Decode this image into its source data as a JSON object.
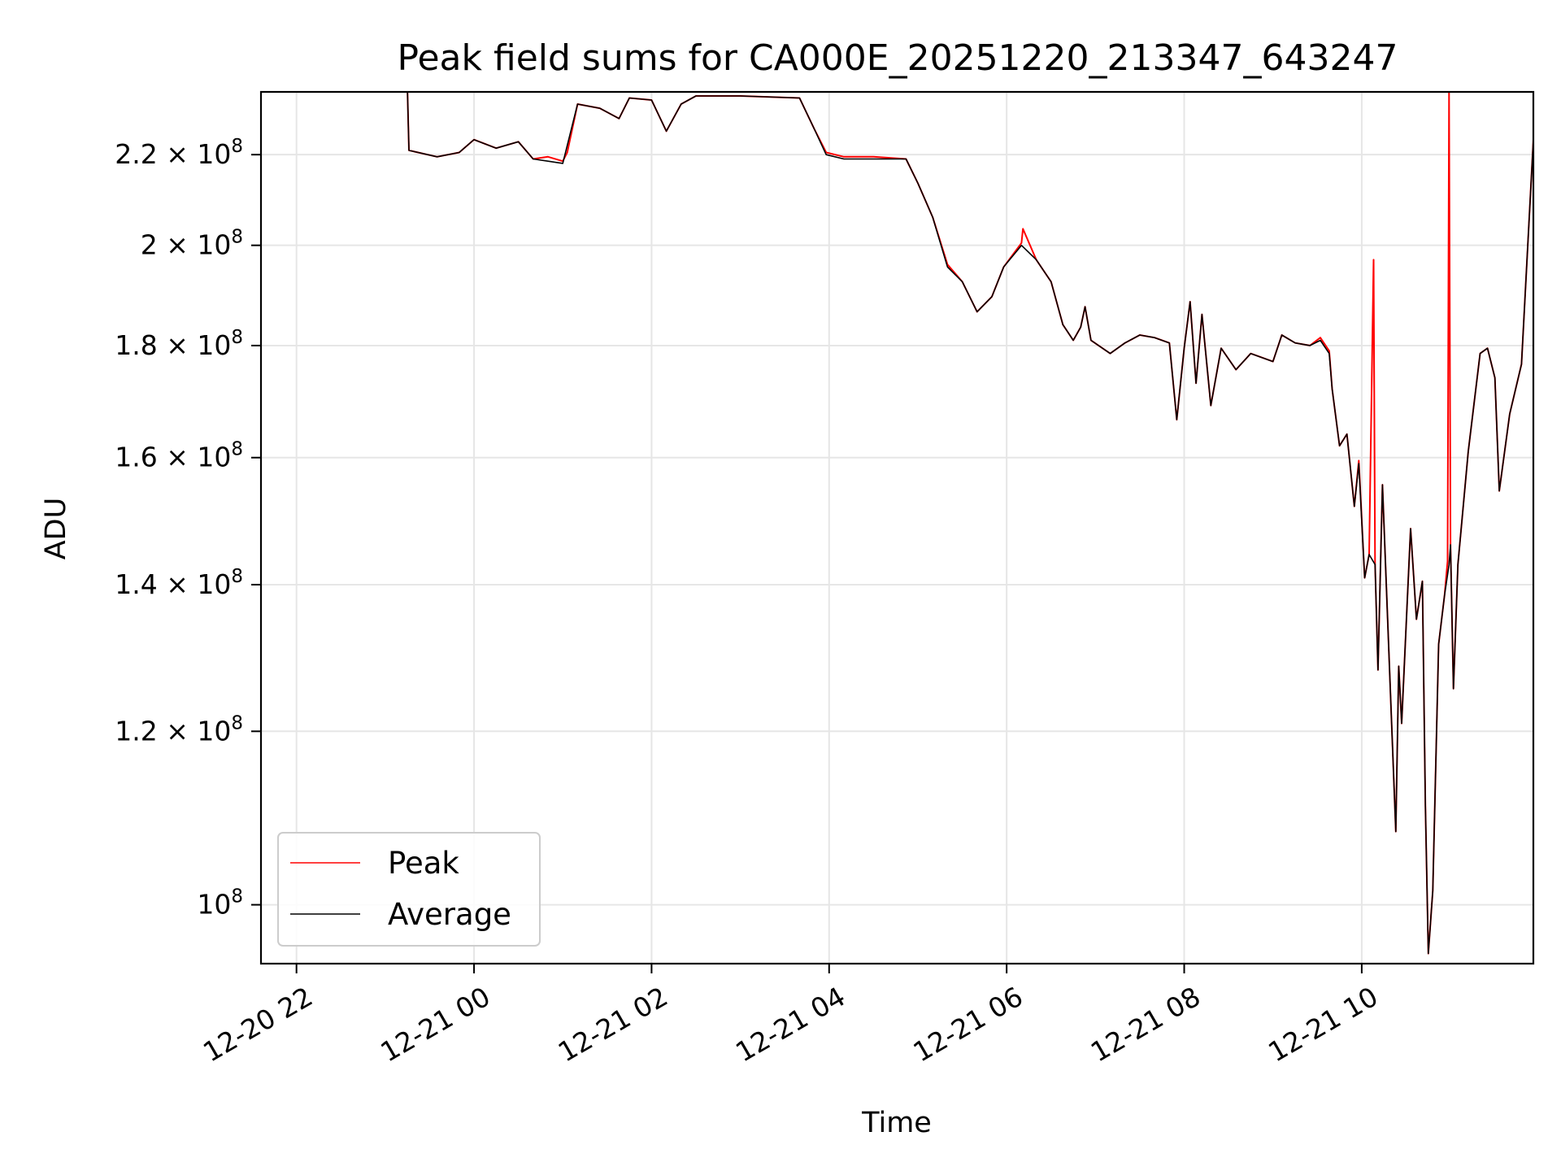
{
  "chart_data": {
    "type": "line",
    "title": "Peak field sums for CA000E_20251220_213347_643247",
    "xlabel": "Time",
    "ylabel": "ADU",
    "y_scale": "log",
    "grid": true,
    "legend_position": "lower-left",
    "x_range": [
      "2025-12-20 21:36",
      "2025-12-21 11:56"
    ],
    "ylim": [
      94000000,
      235000000
    ],
    "x_ticks": [
      "12-20 22",
      "12-21 00",
      "12-21 02",
      "12-21 04",
      "12-21 06",
      "12-21 08",
      "12-21 10"
    ],
    "y_ticks": [
      {
        "value": 100000000,
        "mantissa": "",
        "exponent": "8"
      },
      {
        "value": 120000000,
        "mantissa": "1.2",
        "exponent": "8"
      },
      {
        "value": 140000000,
        "mantissa": "1.4",
        "exponent": "8"
      },
      {
        "value": 160000000,
        "mantissa": "1.6",
        "exponent": "8"
      },
      {
        "value": 180000000,
        "mantissa": "1.8",
        "exponent": "8"
      },
      {
        "value": 200000000,
        "mantissa": "2",
        "exponent": "8"
      },
      {
        "value": 220000000,
        "mantissa": "2.2",
        "exponent": "8"
      }
    ],
    "series": [
      {
        "name": "Peak",
        "color": "#ff0000",
        "points": [
          [
            "2025-12-20 21:36",
            235000000
          ],
          [
            "2025-12-20 23:15",
            235000000
          ],
          [
            "2025-12-20 23:16",
            221000000
          ],
          [
            "2025-12-20 23:35",
            219500000
          ],
          [
            "2025-12-20 23:50",
            220500000
          ],
          [
            "2025-12-21 00:00",
            223500000
          ],
          [
            "2025-12-21 00:15",
            221500000
          ],
          [
            "2025-12-21 00:30",
            223000000
          ],
          [
            "2025-12-21 00:40",
            219000000
          ],
          [
            "2025-12-21 00:50",
            219500000
          ],
          [
            "2025-12-21 01:00",
            218500000
          ],
          [
            "2025-12-21 01:03",
            220500000
          ],
          [
            "2025-12-21 01:10",
            232000000
          ],
          [
            "2025-12-21 01:25",
            231000000
          ],
          [
            "2025-12-21 01:38",
            228500000
          ],
          [
            "2025-12-21 01:45",
            233500000
          ],
          [
            "2025-12-21 02:00",
            233000000
          ],
          [
            "2025-12-21 02:10",
            225500000
          ],
          [
            "2025-12-21 02:20",
            232000000
          ],
          [
            "2025-12-21 02:30",
            234000000
          ],
          [
            "2025-12-21 03:00",
            234000000
          ],
          [
            "2025-12-21 03:40",
            233500000
          ],
          [
            "2025-12-21 03:50",
            226000000
          ],
          [
            "2025-12-21 03:58",
            220500000
          ],
          [
            "2025-12-21 04:10",
            219500000
          ],
          [
            "2025-12-21 04:30",
            219500000
          ],
          [
            "2025-12-21 04:52",
            219000000
          ],
          [
            "2025-12-21 05:00",
            213500000
          ],
          [
            "2025-12-21 05:10",
            206000000
          ],
          [
            "2025-12-21 05:18",
            198000000
          ],
          [
            "2025-12-21 05:20",
            196000000
          ],
          [
            "2025-12-21 05:30",
            192500000
          ],
          [
            "2025-12-21 05:40",
            186500000
          ],
          [
            "2025-12-21 05:50",
            189500000
          ],
          [
            "2025-12-21 05:58",
            195500000
          ],
          [
            "2025-12-21 06:10",
            200500000
          ],
          [
            "2025-12-21 06:11",
            203500000
          ],
          [
            "2025-12-21 06:20",
            197000000
          ],
          [
            "2025-12-21 06:30",
            192500000
          ],
          [
            "2025-12-21 06:38",
            184000000
          ],
          [
            "2025-12-21 06:45",
            181000000
          ],
          [
            "2025-12-21 06:50",
            183500000
          ],
          [
            "2025-12-21 06:53",
            187500000
          ],
          [
            "2025-12-21 06:57",
            181000000
          ],
          [
            "2025-12-21 07:10",
            178500000
          ],
          [
            "2025-12-21 07:20",
            180500000
          ],
          [
            "2025-12-21 07:30",
            182000000
          ],
          [
            "2025-12-21 07:40",
            181500000
          ],
          [
            "2025-12-21 07:50",
            180500000
          ],
          [
            "2025-12-21 07:55",
            166500000
          ],
          [
            "2025-12-21 08:00",
            179500000
          ],
          [
            "2025-12-21 08:04",
            188500000
          ],
          [
            "2025-12-21 08:08",
            173000000
          ],
          [
            "2025-12-21 08:12",
            186000000
          ],
          [
            "2025-12-21 08:18",
            169000000
          ],
          [
            "2025-12-21 08:25",
            179500000
          ],
          [
            "2025-12-21 08:35",
            175500000
          ],
          [
            "2025-12-21 08:45",
            178500000
          ],
          [
            "2025-12-21 09:00",
            177000000
          ],
          [
            "2025-12-21 09:06",
            182000000
          ],
          [
            "2025-12-21 09:15",
            180500000
          ],
          [
            "2025-12-21 09:25",
            180000000
          ],
          [
            "2025-12-21 09:32",
            181500000
          ],
          [
            "2025-12-21 09:38",
            179000000
          ],
          [
            "2025-12-21 09:40",
            172000000
          ],
          [
            "2025-12-21 09:45",
            162000000
          ],
          [
            "2025-12-21 09:50",
            164000000
          ],
          [
            "2025-12-21 09:55",
            152000000
          ],
          [
            "2025-12-21 09:58",
            159500000
          ],
          [
            "2025-12-21 10:02",
            141000000
          ],
          [
            "2025-12-21 10:05",
            144500000
          ],
          [
            "2025-12-21 10:08",
            197000000
          ],
          [
            "2025-12-21 10:09",
            143000000
          ],
          [
            "2025-12-21 10:11",
            128000000
          ],
          [
            "2025-12-21 10:14",
            155500000
          ],
          [
            "2025-12-21 10:20",
            122000000
          ],
          [
            "2025-12-21 10:23",
            108000000
          ],
          [
            "2025-12-21 10:25",
            128500000
          ],
          [
            "2025-12-21 10:27",
            121000000
          ],
          [
            "2025-12-21 10:33",
            148500000
          ],
          [
            "2025-12-21 10:37",
            135000000
          ],
          [
            "2025-12-21 10:41",
            140500000
          ],
          [
            "2025-12-21 10:43",
            111000000
          ],
          [
            "2025-12-21 10:45",
            95000000
          ],
          [
            "2025-12-21 10:48",
            101500000
          ],
          [
            "2025-12-21 10:52",
            131500000
          ],
          [
            "2025-12-21 10:56",
            138500000
          ],
          [
            "2025-12-21 10:58",
            143500000
          ],
          [
            "2025-12-21 10:59",
            235000000
          ],
          [
            "2025-12-21 11:00",
            146000000
          ],
          [
            "2025-12-21 11:02",
            125500000
          ],
          [
            "2025-12-21 11:05",
            143000000
          ],
          [
            "2025-12-21 11:12",
            161000000
          ],
          [
            "2025-12-21 11:20",
            178500000
          ],
          [
            "2025-12-21 11:25",
            179500000
          ],
          [
            "2025-12-21 11:30",
            174000000
          ],
          [
            "2025-12-21 11:33",
            154500000
          ],
          [
            "2025-12-21 11:40",
            167500000
          ],
          [
            "2025-12-21 11:48",
            176500000
          ],
          [
            "2025-12-21 11:56",
            223500000
          ]
        ]
      },
      {
        "name": "Average",
        "color": "#000000",
        "points": [
          [
            "2025-12-20 21:36",
            235000000
          ],
          [
            "2025-12-20 23:15",
            235000000
          ],
          [
            "2025-12-20 23:16",
            221000000
          ],
          [
            "2025-12-20 23:35",
            219500000
          ],
          [
            "2025-12-20 23:50",
            220500000
          ],
          [
            "2025-12-21 00:00",
            223500000
          ],
          [
            "2025-12-21 00:15",
            221500000
          ],
          [
            "2025-12-21 00:30",
            223000000
          ],
          [
            "2025-12-21 00:40",
            219000000
          ],
          [
            "2025-12-21 00:50",
            218500000
          ],
          [
            "2025-12-21 01:00",
            218000000
          ],
          [
            "2025-12-21 01:10",
            232000000
          ],
          [
            "2025-12-21 01:25",
            231000000
          ],
          [
            "2025-12-21 01:38",
            228500000
          ],
          [
            "2025-12-21 01:45",
            233500000
          ],
          [
            "2025-12-21 02:00",
            233000000
          ],
          [
            "2025-12-21 02:10",
            225500000
          ],
          [
            "2025-12-21 02:20",
            232000000
          ],
          [
            "2025-12-21 02:30",
            234000000
          ],
          [
            "2025-12-21 03:00",
            234000000
          ],
          [
            "2025-12-21 03:40",
            233500000
          ],
          [
            "2025-12-21 03:50",
            226000000
          ],
          [
            "2025-12-21 03:58",
            220000000
          ],
          [
            "2025-12-21 04:10",
            219000000
          ],
          [
            "2025-12-21 04:30",
            219000000
          ],
          [
            "2025-12-21 04:52",
            219000000
          ],
          [
            "2025-12-21 05:00",
            213500000
          ],
          [
            "2025-12-21 05:10",
            206000000
          ],
          [
            "2025-12-21 05:20",
            195500000
          ],
          [
            "2025-12-21 05:30",
            192500000
          ],
          [
            "2025-12-21 05:40",
            186500000
          ],
          [
            "2025-12-21 05:50",
            189500000
          ],
          [
            "2025-12-21 05:58",
            195500000
          ],
          [
            "2025-12-21 06:10",
            200000000
          ],
          [
            "2025-12-21 06:20",
            197000000
          ],
          [
            "2025-12-21 06:30",
            192500000
          ],
          [
            "2025-12-21 06:38",
            184000000
          ],
          [
            "2025-12-21 06:45",
            181000000
          ],
          [
            "2025-12-21 06:50",
            183500000
          ],
          [
            "2025-12-21 06:53",
            187500000
          ],
          [
            "2025-12-21 06:57",
            181000000
          ],
          [
            "2025-12-21 07:10",
            178500000
          ],
          [
            "2025-12-21 07:20",
            180500000
          ],
          [
            "2025-12-21 07:30",
            182000000
          ],
          [
            "2025-12-21 07:40",
            181500000
          ],
          [
            "2025-12-21 07:50",
            180500000
          ],
          [
            "2025-12-21 07:55",
            166500000
          ],
          [
            "2025-12-21 08:00",
            179500000
          ],
          [
            "2025-12-21 08:04",
            188500000
          ],
          [
            "2025-12-21 08:08",
            173000000
          ],
          [
            "2025-12-21 08:12",
            186000000
          ],
          [
            "2025-12-21 08:18",
            169000000
          ],
          [
            "2025-12-21 08:25",
            179500000
          ],
          [
            "2025-12-21 08:35",
            175500000
          ],
          [
            "2025-12-21 08:45",
            178500000
          ],
          [
            "2025-12-21 09:00",
            177000000
          ],
          [
            "2025-12-21 09:06",
            182000000
          ],
          [
            "2025-12-21 09:15",
            180500000
          ],
          [
            "2025-12-21 09:25",
            180000000
          ],
          [
            "2025-12-21 09:32",
            181000000
          ],
          [
            "2025-12-21 09:38",
            178500000
          ],
          [
            "2025-12-21 09:40",
            172000000
          ],
          [
            "2025-12-21 09:45",
            162000000
          ],
          [
            "2025-12-21 09:50",
            164000000
          ],
          [
            "2025-12-21 09:55",
            152000000
          ],
          [
            "2025-12-21 09:58",
            159000000
          ],
          [
            "2025-12-21 10:02",
            141000000
          ],
          [
            "2025-12-21 10:05",
            144500000
          ],
          [
            "2025-12-21 10:09",
            143000000
          ],
          [
            "2025-12-21 10:11",
            128000000
          ],
          [
            "2025-12-21 10:14",
            155500000
          ],
          [
            "2025-12-21 10:20",
            122000000
          ],
          [
            "2025-12-21 10:23",
            108000000
          ],
          [
            "2025-12-21 10:25",
            128500000
          ],
          [
            "2025-12-21 10:27",
            121000000
          ],
          [
            "2025-12-21 10:33",
            148500000
          ],
          [
            "2025-12-21 10:37",
            135000000
          ],
          [
            "2025-12-21 10:41",
            140500000
          ],
          [
            "2025-12-21 10:43",
            111000000
          ],
          [
            "2025-12-21 10:45",
            95000000
          ],
          [
            "2025-12-21 10:48",
            101500000
          ],
          [
            "2025-12-21 10:52",
            131500000
          ],
          [
            "2025-12-21 10:56",
            138500000
          ],
          [
            "2025-12-21 10:59",
            143000000
          ],
          [
            "2025-12-21 11:00",
            146000000
          ],
          [
            "2025-12-21 11:02",
            125500000
          ],
          [
            "2025-12-21 11:05",
            143000000
          ],
          [
            "2025-12-21 11:12",
            161000000
          ],
          [
            "2025-12-21 11:20",
            178500000
          ],
          [
            "2025-12-21 11:25",
            179500000
          ],
          [
            "2025-12-21 11:30",
            174000000
          ],
          [
            "2025-12-21 11:33",
            154500000
          ],
          [
            "2025-12-21 11:40",
            167500000
          ],
          [
            "2025-12-21 11:48",
            176500000
          ],
          [
            "2025-12-21 11:56",
            223500000
          ]
        ]
      }
    ]
  },
  "colors": {
    "grid": "#e6e6e6",
    "axes": "#000000",
    "background": "#ffffff",
    "legend_border": "#cccccc"
  }
}
